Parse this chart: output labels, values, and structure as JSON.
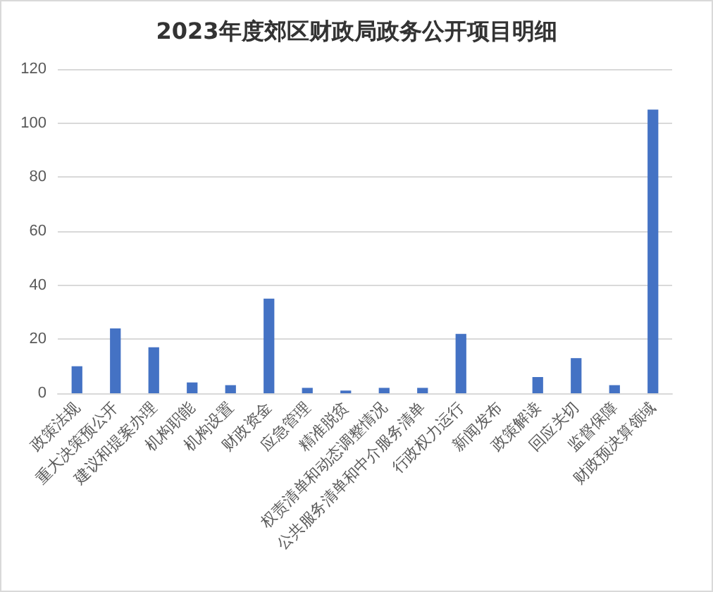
{
  "chart_data": {
    "type": "bar",
    "title": "2023年度郊区财政局政务公开项目明细",
    "categories": [
      "政策法规",
      "重大决策预公开",
      "建议和提案办理",
      "机构职能",
      "机构设置",
      "财政资金",
      "应急管理",
      "精准脱贫",
      "权责清单和动态调整情况",
      "公共服务清单和中介服务清单",
      "行政权力运行",
      "新闻发布",
      "政策解读",
      "回应关切",
      "监督保障",
      "财政预决算领域"
    ],
    "values": [
      10,
      24,
      17,
      4,
      3,
      35,
      2,
      1,
      2,
      2,
      22,
      0,
      6,
      13,
      3,
      105
    ],
    "color": "#4472c4",
    "ylim": [
      0,
      120
    ],
    "yticks": [
      0,
      20,
      40,
      60,
      80,
      100,
      120
    ],
    "grid": "y"
  }
}
